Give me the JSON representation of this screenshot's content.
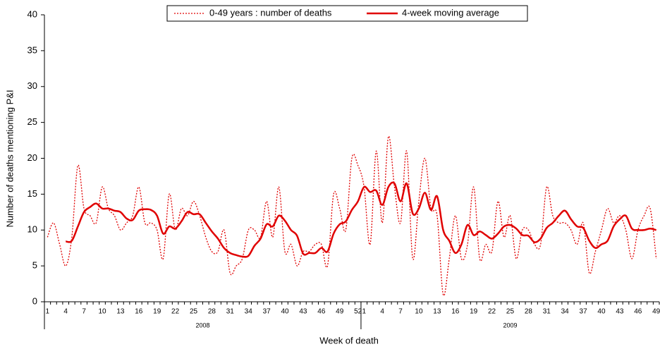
{
  "chart_data": {
    "type": "line",
    "x_label": "Week of death",
    "y_label": "Number of deaths mentioning P&I",
    "categories": [
      "1",
      null,
      null,
      "4",
      null,
      null,
      "7",
      null,
      null,
      "10",
      null,
      null,
      "13",
      null,
      null,
      "16",
      null,
      null,
      "19",
      null,
      null,
      "22",
      null,
      null,
      "25",
      null,
      null,
      "28",
      null,
      null,
      "31",
      null,
      null,
      "34",
      null,
      null,
      "37",
      null,
      null,
      "40",
      null,
      null,
      "43",
      null,
      null,
      "46",
      null,
      null,
      "49",
      null,
      null,
      "52",
      "1",
      null,
      null,
      "4",
      null,
      null,
      "7",
      null,
      null,
      "10",
      null,
      null,
      "13",
      null,
      null,
      "16",
      null,
      null,
      "19",
      null,
      null,
      "22",
      null,
      null,
      "25",
      null,
      null,
      "28",
      null,
      null,
      "31",
      null,
      null,
      "34",
      null,
      null,
      "37",
      null,
      null,
      "40",
      null,
      null,
      "43",
      null,
      null,
      "46",
      null,
      null,
      "49"
    ],
    "x_groups": [
      {
        "label": "2008",
        "count": 52
      },
      {
        "label": "2009",
        "count": 49
      }
    ],
    "series": [
      {
        "name": "0-49 years : number of deaths",
        "color": "#e00000",
        "dash": "dotted",
        "values": [
          9,
          11,
          8,
          5,
          9,
          19,
          13,
          12,
          11,
          16,
          13,
          12,
          10,
          11,
          12,
          16,
          11,
          11,
          10,
          6,
          15,
          10,
          13,
          12,
          14,
          12,
          9,
          7,
          7,
          10,
          4,
          5,
          6,
          10,
          10,
          9,
          14,
          9,
          16,
          7,
          8,
          5,
          7,
          7,
          8,
          8,
          5,
          15,
          13,
          10,
          20,
          19,
          16,
          8,
          21,
          11,
          23,
          16,
          11,
          21,
          6,
          14,
          20,
          13,
          12,
          1,
          6,
          12,
          6,
          8,
          16,
          6,
          8,
          7,
          14,
          9,
          12,
          6,
          10,
          10,
          8,
          8,
          16,
          12,
          11,
          11,
          10,
          8,
          11,
          4,
          7,
          10,
          13,
          11,
          12,
          10,
          6,
          10,
          12,
          13,
          6
        ]
      },
      {
        "name": "4-week moving average",
        "color": "#e00000",
        "dash": "solid",
        "values": [
          null,
          null,
          null,
          8.4,
          8.5,
          10.5,
          12.5,
          13.2,
          13.7,
          13.0,
          13.0,
          12.7,
          12.5,
          11.6,
          11.4,
          12.7,
          12.9,
          12.8,
          12.0,
          9.5,
          10.5,
          10.2,
          11.2,
          12.5,
          12.2,
          12.2,
          11.0,
          9.8,
          8.8,
          7.5,
          6.8,
          6.5,
          6.3,
          6.4,
          7.8,
          8.8,
          10.8,
          10.5,
          12.0,
          11.3,
          10.0,
          9.2,
          6.7,
          6.8,
          6.8,
          7.5,
          7.0,
          9.5,
          10.8,
          11.2,
          12.8,
          14.0,
          16.0,
          15.3,
          15.5,
          13.5,
          16.0,
          16.5,
          14.0,
          16.5,
          12.3,
          13.0,
          15.2,
          12.8,
          14.7,
          10.0,
          8.5,
          6.8,
          8.0,
          10.7,
          9.3,
          9.8,
          9.3,
          8.8,
          9.5,
          10.5,
          10.7,
          10.2,
          9.3,
          9.2,
          8.3,
          8.8,
          10.3,
          11.0,
          12.0,
          12.7,
          11.5,
          10.5,
          10.3,
          8.5,
          7.5,
          8.0,
          8.5,
          10.5,
          11.5,
          12.0,
          10.2,
          10.0,
          10.0,
          10.2,
          10.0
        ]
      }
    ],
    "ylim": [
      0,
      40
    ],
    "yticks": [
      0,
      5,
      10,
      15,
      20,
      25,
      30,
      35,
      40
    ],
    "grid": false,
    "legend": "top"
  }
}
